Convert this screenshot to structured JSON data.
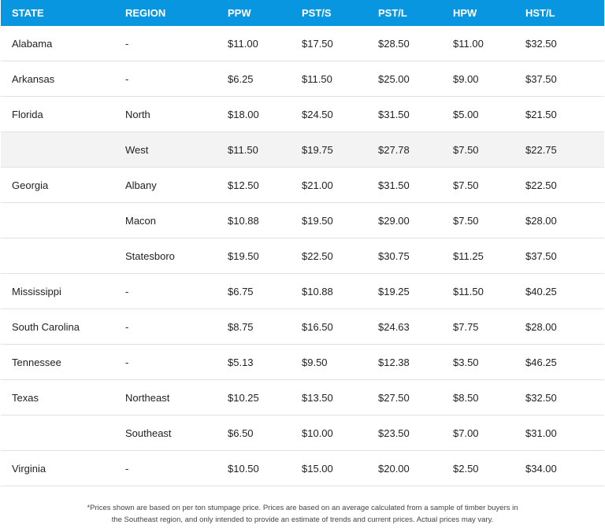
{
  "table": {
    "headers": [
      "STATE",
      "REGION",
      "PPW",
      "PST/S",
      "PST/L",
      "HPW",
      "HST/L"
    ],
    "rows": [
      [
        "Alabama",
        "-",
        "$11.00",
        "$17.50",
        "$28.50",
        "$11.00",
        "$32.50"
      ],
      [
        "Arkansas",
        "-",
        "$6.25",
        "$11.50",
        "$25.00",
        "$9.00",
        "$37.50"
      ],
      [
        "Florida",
        "North",
        "$18.00",
        "$24.50",
        "$31.50",
        "$5.00",
        "$21.50"
      ],
      [
        "",
        "West",
        "$11.50",
        "$19.75",
        "$27.78",
        "$7.50",
        "$22.75"
      ],
      [
        "Georgia",
        "Albany",
        "$12.50",
        "$21.00",
        "$31.50",
        "$7.50",
        "$22.50"
      ],
      [
        "",
        "Macon",
        "$10.88",
        "$19.50",
        "$29.00",
        "$7.50",
        "$28.00"
      ],
      [
        "",
        "Statesboro",
        "$19.50",
        "$22.50",
        "$30.75",
        "$11.25",
        "$37.50"
      ],
      [
        "Mississippi",
        "-",
        "$6.75",
        "$10.88",
        "$19.25",
        "$11.50",
        "$40.25"
      ],
      [
        "South Carolina",
        "-",
        "$8.75",
        "$16.50",
        "$24.63",
        "$7.75",
        "$28.00"
      ],
      [
        "Tennessee",
        "-",
        "$5.13",
        "$9.50",
        "$12.38",
        "$3.50",
        "$46.25"
      ],
      [
        "Texas",
        "Northeast",
        "$10.25",
        "$13.50",
        "$27.50",
        "$8.50",
        "$32.50"
      ],
      [
        "",
        "Southeast",
        "$6.50",
        "$10.00",
        "$23.50",
        "$7.00",
        "$31.00"
      ],
      [
        "Virginia",
        "-",
        "$10.50",
        "$15.00",
        "$20.00",
        "$2.50",
        "$34.00"
      ]
    ],
    "shaded_row_index": 3,
    "header_color": "#0996e0"
  },
  "footnote": {
    "line1": "*Prices shown are based on per ton stumpage price. Prices are based on an average calculated from a sample of timber buyers in",
    "line2": "the Southeast region, and only intended to provide an estimate of trends and current prices. Actual prices may vary."
  }
}
